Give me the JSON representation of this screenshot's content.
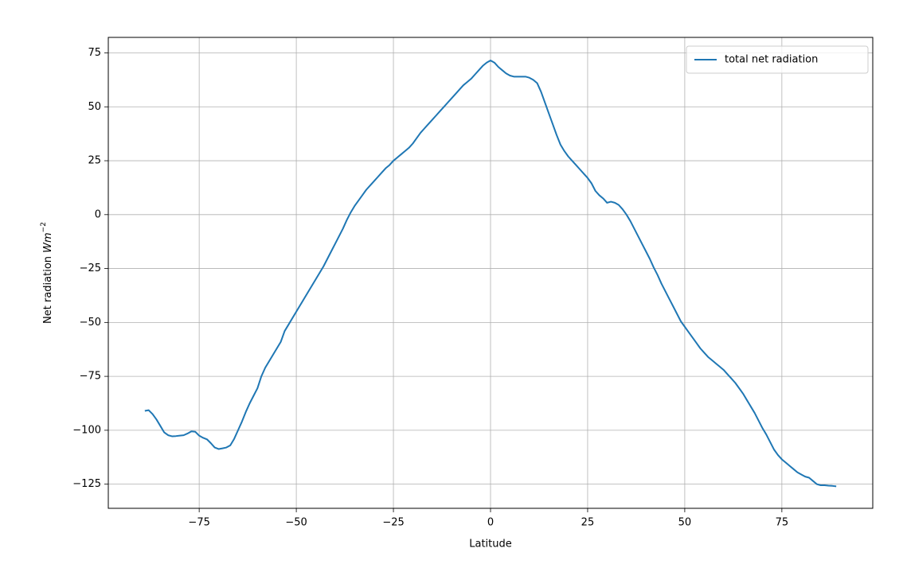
{
  "chart_data": {
    "type": "line",
    "xlabel": "Latitude",
    "ylabel": "Net radiation",
    "ylabel_unit": "Wm",
    "ylabel_exponent": "−2",
    "legend": "upper right",
    "grid": true,
    "xlim": [
      -98.4,
      98.4
    ],
    "ylim": [
      -136.2,
      82.2
    ],
    "xticks": [
      {
        "value": -75,
        "label": "−75"
      },
      {
        "value": -50,
        "label": "−50"
      },
      {
        "value": -25,
        "label": "−25"
      },
      0,
      25,
      50,
      75
    ],
    "yticks": [
      {
        "value": -125,
        "label": "−125"
      },
      {
        "value": -100,
        "label": "−100"
      },
      {
        "value": -75,
        "label": "−75"
      },
      {
        "value": -50,
        "label": "−50"
      },
      {
        "value": -25,
        "label": "−25"
      },
      0,
      25,
      50,
      75
    ],
    "x": [
      -89,
      -88,
      -87,
      -86,
      -85,
      -84,
      -83,
      -82,
      -81,
      -80,
      -79,
      -78,
      -77,
      -76,
      -75,
      -74,
      -73,
      -72,
      -71,
      -70,
      -69,
      -68,
      -67,
      -66,
      -65,
      -64,
      -63,
      -62,
      -61,
      -60,
      -59,
      -58,
      -57,
      -56,
      -55,
      -54,
      -53,
      -52,
      -51,
      -50,
      -49,
      -48,
      -47,
      -46,
      -45,
      -44,
      -43,
      -42,
      -41,
      -40,
      -39,
      -38,
      -37,
      -36,
      -35,
      -34,
      -33,
      -32,
      -31,
      -30,
      -29,
      -28,
      -27,
      -26,
      -25,
      -24,
      -23,
      -22,
      -21,
      -20,
      -19,
      -18,
      -17,
      -16,
      -15,
      -14,
      -13,
      -12,
      -11,
      -10,
      -9,
      -8,
      -7,
      -6,
      -5,
      -4,
      -3,
      -2,
      -1,
      0,
      1,
      2,
      3,
      4,
      5,
      6,
      7,
      8,
      9,
      10,
      11,
      12,
      13,
      14,
      15,
      16,
      17,
      18,
      19,
      20,
      21,
      22,
      23,
      24,
      25,
      26,
      27,
      28,
      29,
      30,
      31,
      32,
      33,
      34,
      35,
      36,
      37,
      38,
      39,
      40,
      41,
      42,
      43,
      44,
      45,
      46,
      47,
      48,
      49,
      50,
      51,
      52,
      53,
      54,
      55,
      56,
      57,
      58,
      59,
      60,
      61,
      62,
      63,
      64,
      65,
      66,
      67,
      68,
      69,
      70,
      71,
      72,
      73,
      74,
      75,
      76,
      77,
      78,
      79,
      80,
      81,
      82,
      83,
      84,
      85,
      86,
      87,
      88,
      89
    ],
    "series": [
      {
        "name": "total net radiation",
        "color": "#1f77b4",
        "values": [
          -91,
          -90.7,
          -92.5,
          -95,
          -98,
          -101,
          -102.3,
          -102.8,
          -102.7,
          -102.5,
          -102.3,
          -101.5,
          -100.5,
          -100.7,
          -102.5,
          -103.5,
          -104.2,
          -106,
          -108,
          -108.7,
          -108.4,
          -108,
          -107,
          -104,
          -100,
          -96,
          -91.5,
          -87.5,
          -84,
          -80.5,
          -75,
          -71,
          -68,
          -65,
          -62,
          -59,
          -54,
          -51,
          -48,
          -45,
          -42,
          -39,
          -36,
          -33,
          -30,
          -27,
          -24,
          -20.5,
          -17,
          -13.5,
          -10,
          -6.5,
          -2.5,
          1,
          4,
          6.5,
          9,
          11.5,
          13.5,
          15.5,
          17.5,
          19.5,
          21.5,
          23,
          25,
          26.5,
          28,
          29.5,
          31,
          33,
          35.5,
          38,
          40,
          42,
          44,
          46,
          48,
          50,
          52,
          54,
          56,
          58,
          60,
          61.5,
          63,
          65,
          67,
          69,
          70.5,
          71.5,
          70.5,
          68.5,
          67,
          65.5,
          64.5,
          64,
          64,
          64,
          64,
          63.5,
          62.5,
          61,
          57,
          52,
          47,
          42,
          37,
          32.5,
          29.5,
          27,
          25,
          23,
          21,
          19,
          17,
          14.5,
          11,
          9,
          7.5,
          5.5,
          6,
          5.5,
          4.5,
          2.5,
          0,
          -3,
          -6.5,
          -10,
          -13.5,
          -17,
          -20.5,
          -24.5,
          -28,
          -32,
          -35.5,
          -39,
          -42.5,
          -46,
          -49.5,
          -52,
          -54.5,
          -57,
          -59.5,
          -62,
          -64,
          -66,
          -67.5,
          -69,
          -70.5,
          -72,
          -74,
          -76,
          -78,
          -80.5,
          -83,
          -86,
          -89,
          -92,
          -95.5,
          -99,
          -102,
          -105.5,
          -109,
          -111.5,
          -113.5,
          -115,
          -116.5,
          -118,
          -119.5,
          -120.5,
          -121.5,
          -122,
          -123.5,
          -125,
          -125.5,
          -125.5,
          -125.7,
          -125.8,
          -126
        ]
      }
    ]
  }
}
